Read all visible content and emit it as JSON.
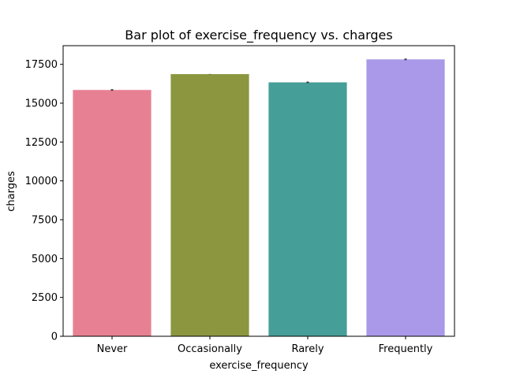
{
  "chart_data": {
    "type": "bar",
    "title": "Bar plot of exercise_frequency vs. charges",
    "xlabel": "exercise_frequency",
    "ylabel": "charges",
    "categories": [
      "Never",
      "Occasionally",
      "Rarely",
      "Frequently"
    ],
    "values": [
      15850,
      16870,
      16340,
      17820
    ],
    "error_low": [
      15800,
      16860,
      16290,
      17770
    ],
    "error_high": [
      15900,
      16880,
      16390,
      17870
    ],
    "colors": [
      "#e88093",
      "#8b963f",
      "#469e98",
      "#aa99e8"
    ],
    "ylim": [
      0,
      18700
    ],
    "yticks": [
      0,
      2500,
      5000,
      7500,
      10000,
      12500,
      15000,
      17500
    ],
    "ytick_labels": [
      "0",
      "2500",
      "5000",
      "7500",
      "10000",
      "12500",
      "15000",
      "17500"
    ],
    "grid": false
  }
}
